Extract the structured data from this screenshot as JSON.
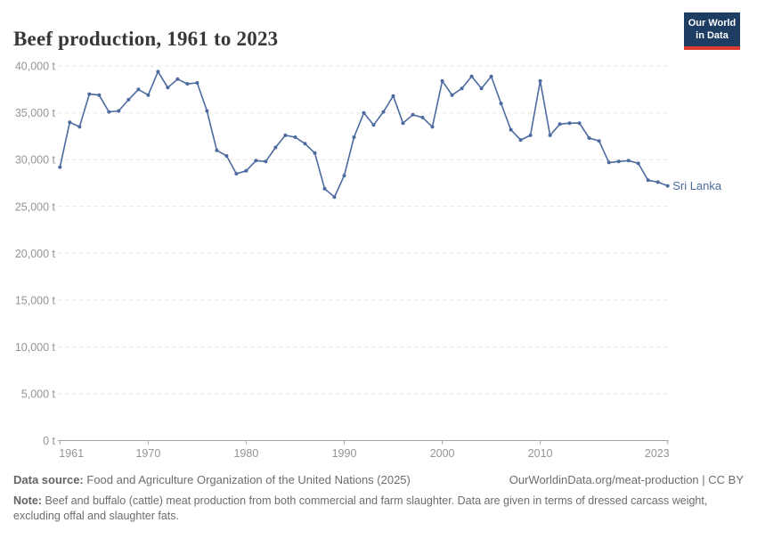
{
  "header": {
    "logo": {
      "line1": "Our World",
      "line2": "in Data"
    }
  },
  "chart_data": {
    "type": "line",
    "title": "Beef production, 1961 to 2023",
    "unit": "t",
    "xlabel": "",
    "ylabel": "",
    "x_range": [
      1961,
      2023
    ],
    "ylim": [
      0,
      40000
    ],
    "grid": "horizontal-dashed",
    "legend_position": "end-of-line-label",
    "colors": {
      "line": "#4c6a9f",
      "gridline": "#e4e4e4",
      "axis": "#a5a5a5",
      "tick_label": "#959595",
      "logo_bg": "#1d3d63",
      "logo_underline": "#dc3c32"
    },
    "yticks": [
      {
        "v": 0,
        "label": "0 t"
      },
      {
        "v": 5000,
        "label": "5,000 t"
      },
      {
        "v": 10000,
        "label": "10,000 t"
      },
      {
        "v": 15000,
        "label": "15,000 t"
      },
      {
        "v": 20000,
        "label": "20,000 t"
      },
      {
        "v": 25000,
        "label": "25,000 t"
      },
      {
        "v": 30000,
        "label": "30,000 t"
      },
      {
        "v": 35000,
        "label": "35,000 t"
      },
      {
        "v": 40000,
        "label": "40,000 t"
      }
    ],
    "xticks": [
      {
        "v": 1961,
        "label": "1961"
      },
      {
        "v": 1970,
        "label": "1970"
      },
      {
        "v": 1980,
        "label": "1980"
      },
      {
        "v": 1990,
        "label": "1990"
      },
      {
        "v": 2000,
        "label": "2000"
      },
      {
        "v": 2010,
        "label": "2010"
      },
      {
        "v": 2023,
        "label": "2023"
      }
    ],
    "series": [
      {
        "name": "Sri Lanka",
        "color": "#4c6a9f",
        "years": [
          1961,
          1962,
          1963,
          1964,
          1965,
          1966,
          1967,
          1968,
          1969,
          1970,
          1971,
          1972,
          1973,
          1974,
          1975,
          1976,
          1977,
          1978,
          1979,
          1980,
          1981,
          1982,
          1983,
          1984,
          1985,
          1986,
          1987,
          1988,
          1989,
          1990,
          1991,
          1992,
          1993,
          1994,
          1995,
          1996,
          1997,
          1998,
          1999,
          2000,
          2001,
          2002,
          2003,
          2004,
          2005,
          2006,
          2007,
          2008,
          2009,
          2010,
          2011,
          2012,
          2013,
          2014,
          2015,
          2016,
          2017,
          2018,
          2019,
          2020,
          2021,
          2022,
          2023
        ],
        "values": [
          29200,
          34000,
          33500,
          37000,
          36900,
          35100,
          35200,
          36400,
          37500,
          36900,
          39400,
          37700,
          38600,
          38100,
          38200,
          35200,
          31000,
          30400,
          28500,
          28800,
          29900,
          29800,
          31300,
          32600,
          32400,
          31700,
          30700,
          26900,
          26000,
          28300,
          32400,
          35000,
          33700,
          35100,
          36800,
          33900,
          34800,
          34500,
          33500,
          38400,
          36900,
          37600,
          38900,
          37600,
          38900,
          36000,
          33200,
          32100,
          32600,
          38400,
          32600,
          33800,
          33900,
          33900,
          32300,
          32000,
          29700,
          29800,
          29900,
          29600,
          27800,
          27600,
          27200
        ]
      }
    ]
  },
  "footer": {
    "source_label": "Data source:",
    "source_text": "Food and Agriculture Organization of the United Nations (2025)",
    "credit": "OurWorldinData.org/meat-production | CC BY",
    "note_label": "Note:",
    "note_text": "Beef and buffalo (cattle) meat production from both commercial and farm slaughter. Data are given in terms of dressed carcass weight, excluding offal and slaughter fats."
  }
}
